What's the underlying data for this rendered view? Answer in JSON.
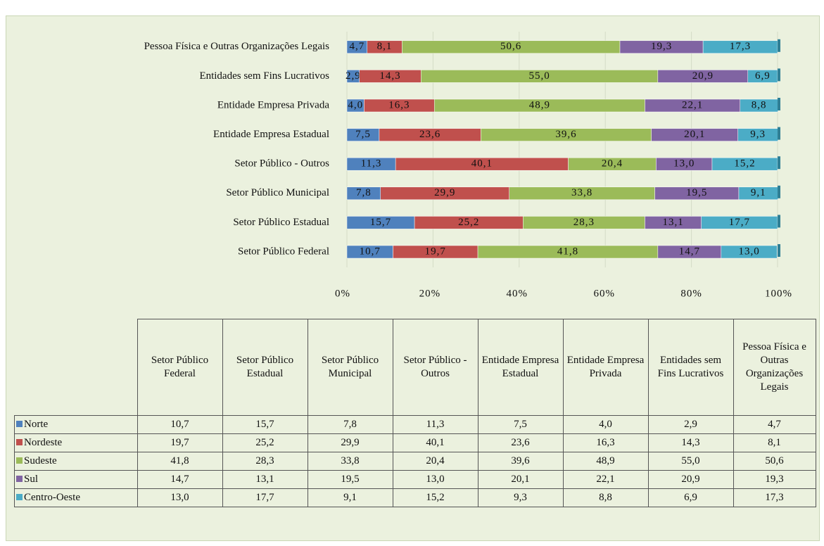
{
  "chart_data": {
    "type": "stacked_barh",
    "categories": [
      "Setor Público Federal",
      "Setor Público Estadual",
      "Setor Público Municipal",
      "Setor Público - Outros",
      "Entidade Empresa Estadual",
      "Entidade Empresa Privada",
      "Entidades sem Fins Lucrativos",
      "Pessoa Física e Outras Organizações Legais"
    ],
    "series": [
      {
        "name": "Norte",
        "color": "#4f81bd",
        "values": [
          10.7,
          15.7,
          7.8,
          11.3,
          7.5,
          4.0,
          2.9,
          4.7
        ],
        "value_labels": [
          "10,7",
          "15,7",
          "7,8",
          "11,3",
          "7,5",
          "4,0",
          "2,9",
          "4,7"
        ]
      },
      {
        "name": "Nordeste",
        "color": "#c0504d",
        "values": [
          19.7,
          25.2,
          29.9,
          40.1,
          23.6,
          16.3,
          14.3,
          8.1
        ],
        "value_labels": [
          "19,7",
          "25,2",
          "29,9",
          "40,1",
          "23,6",
          "16,3",
          "14,3",
          "8,1"
        ]
      },
      {
        "name": "Sudeste",
        "color": "#9bbb59",
        "values": [
          41.8,
          28.3,
          33.8,
          20.4,
          39.6,
          48.9,
          55.0,
          50.6
        ],
        "value_labels": [
          "41,8",
          "28,3",
          "33,8",
          "20,4",
          "39,6",
          "48,9",
          "55,0",
          "50,6"
        ]
      },
      {
        "name": "Sul",
        "color": "#8064a2",
        "values": [
          14.7,
          13.1,
          19.5,
          13.0,
          20.1,
          22.1,
          20.9,
          19.3
        ],
        "value_labels": [
          "14,7",
          "13,1",
          "19,5",
          "13,0",
          "20,1",
          "22,1",
          "20,9",
          "19,3"
        ]
      },
      {
        "name": "Centro-Oeste",
        "color": "#4bacc6",
        "values": [
          13.0,
          17.7,
          9.1,
          15.2,
          9.3,
          8.8,
          6.9,
          17.3
        ],
        "value_labels": [
          "13,0",
          "17,7",
          "9,1",
          "15,2",
          "9,3",
          "8,8",
          "6,9",
          "17,3"
        ]
      }
    ],
    "xlim": [
      0,
      100
    ],
    "xticks": [
      {
        "value": 0,
        "label": "0%"
      },
      {
        "value": 20,
        "label": "20%"
      },
      {
        "value": 40,
        "label": "40%"
      },
      {
        "value": 60,
        "label": "60%"
      },
      {
        "value": 80,
        "label": "80%"
      },
      {
        "value": 100,
        "label": "100%"
      }
    ],
    "grid": true
  }
}
